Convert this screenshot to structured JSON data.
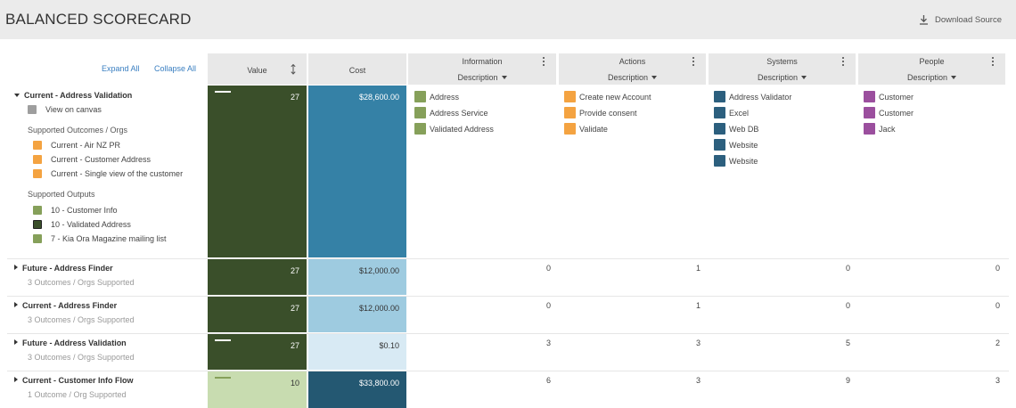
{
  "header": {
    "title": "BALANCED SCORECARD",
    "download_label": "Download Source",
    "download_icon": "download-icon"
  },
  "toolbar": {
    "expand_all": "Expand All",
    "collapse_all": "Collapse All"
  },
  "columns": {
    "value": {
      "title": "Value",
      "icon": "sort-icon"
    },
    "cost": {
      "title": "Cost"
    },
    "information": {
      "title": "Information",
      "sub": "Description"
    },
    "actions": {
      "title": "Actions",
      "sub": "Description"
    },
    "systems": {
      "title": "Systems",
      "sub": "Description"
    },
    "people": {
      "title": "People",
      "sub": "Description"
    }
  },
  "colors": {
    "value_dark": "#3a4f2a",
    "value_light": "#c8dcb0",
    "cost_mid": "#3581a6",
    "cost_light": "#9ecbe0",
    "cost_pale": "#d8eaf4",
    "cost_dark": "#245872",
    "info_green": "#86a05a",
    "action_orange": "#f4a341",
    "system_blue": "#2c5f7e",
    "people_purple": "#9b4f9e",
    "canvas_gray": "#9e9e9e"
  },
  "expanded": {
    "title": "Current - Address Validation",
    "view_on_canvas": "View on canvas",
    "outcomes_label": "Supported Outcomes / Orgs",
    "outcomes": [
      "Current - Air NZ PR",
      "Current - Customer Address",
      "Current - Single view of the customer"
    ],
    "outputs_label": "Supported Outputs",
    "outputs": [
      "10 - Customer Info",
      "10 - Validated Address",
      "7 - Kia Ora Magazine mailing list"
    ],
    "value": "27",
    "cost": "$28,600.00",
    "information": [
      "Address",
      "Address Service",
      "Validated Address"
    ],
    "actions": [
      "Create new Account",
      "Provide consent",
      "Validate"
    ],
    "systems": [
      "Address Validator",
      "Excel",
      "Web DB",
      "Website",
      "Website"
    ],
    "people": [
      "Customer",
      "Customer",
      "Jack"
    ]
  },
  "rows": [
    {
      "title": "Future - Address Finder",
      "sub": "3 Outcomes / Orgs Supported",
      "value": "27",
      "cost": "$12,000.00",
      "information": "0",
      "actions": "1",
      "systems": "0",
      "people": "0"
    },
    {
      "title": "Current - Address Finder",
      "sub": "3 Outcomes / Orgs Supported",
      "value": "27",
      "cost": "$12,000.00",
      "information": "0",
      "actions": "1",
      "systems": "0",
      "people": "0"
    },
    {
      "title": "Future - Address Validation",
      "sub": "3 Outcomes / Orgs Supported",
      "value": "27",
      "cost": "$0.10",
      "information": "3",
      "actions": "3",
      "systems": "5",
      "people": "2"
    },
    {
      "title": "Current - Customer Info Flow",
      "sub": "1 Outcome / Org Supported",
      "value": "10",
      "cost": "$33,800.00",
      "information": "6",
      "actions": "3",
      "systems": "9",
      "people": "3"
    }
  ]
}
